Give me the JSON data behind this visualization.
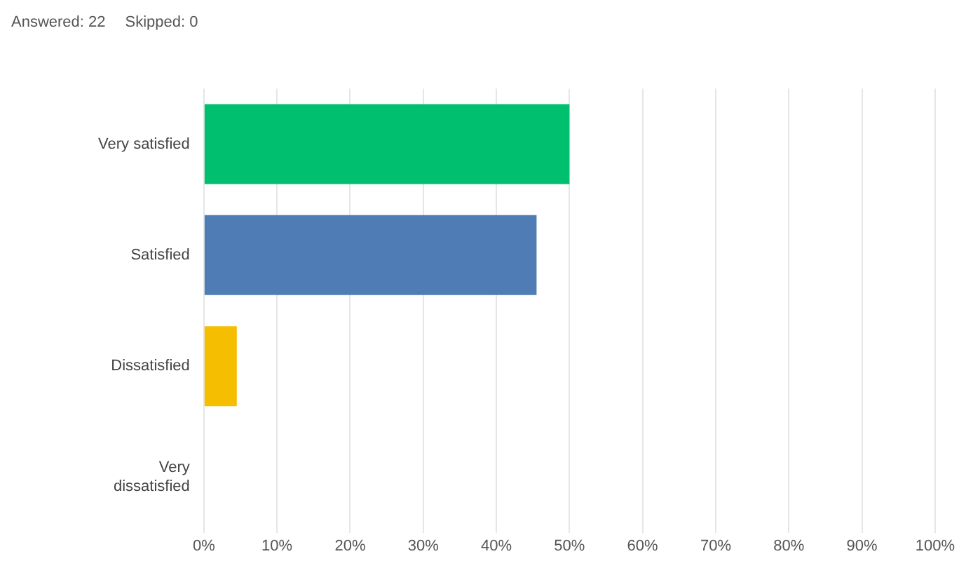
{
  "chart_data": {
    "type": "bar",
    "orientation": "horizontal",
    "annotations": [
      "Answered: 22",
      "Skipped: 0"
    ],
    "categories": [
      "Very satisfied",
      "Satisfied",
      "Dissatisfied",
      "Very dissatisfied"
    ],
    "values": [
      50,
      45.5,
      4.5,
      0
    ],
    "colors": [
      "#00bf6f",
      "#507cb6",
      "#f5be00",
      "#9e9e9e"
    ],
    "xlim": [
      0,
      100
    ],
    "xticks": [
      {
        "value": 0,
        "label": "0%"
      },
      {
        "value": 10,
        "label": "10%"
      },
      {
        "value": 20,
        "label": "20%"
      },
      {
        "value": 30,
        "label": "30%"
      },
      {
        "value": 40,
        "label": "40%"
      },
      {
        "value": 50,
        "label": "50%"
      },
      {
        "value": 60,
        "label": "60%"
      },
      {
        "value": 70,
        "label": "70%"
      },
      {
        "value": 80,
        "label": "80%"
      },
      {
        "value": 90,
        "label": "90%"
      },
      {
        "value": 100,
        "label": "100%"
      }
    ],
    "grid": "x"
  }
}
